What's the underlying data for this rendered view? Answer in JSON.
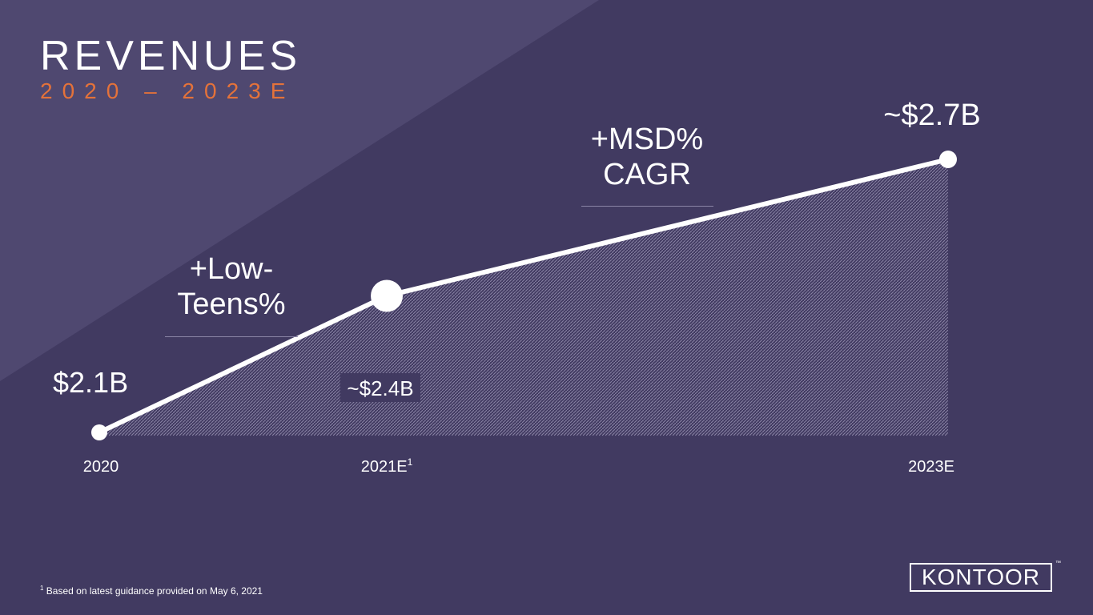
{
  "header": {
    "title": "REVENUES",
    "subtitle": "2020 – 2023E"
  },
  "colors": {
    "background": "#413a61",
    "diagonal_band": "#4f4870",
    "accent": "#e4723a",
    "line": "#ffffff",
    "fill_hatch": "#8a84a6"
  },
  "chart_data": {
    "type": "area",
    "title": "",
    "xlabel": "",
    "ylabel": "",
    "x": [
      "2020",
      "2021E",
      "2023E"
    ],
    "x_superscripts": [
      "",
      "1",
      ""
    ],
    "values_billions_usd": [
      2.1,
      2.4,
      2.7
    ],
    "data_labels": [
      "$2.1B",
      "~$2.4B",
      "~$2.7B"
    ],
    "grid": false,
    "legend": "none",
    "annotations": [
      {
        "text_lines": [
          "+Low-",
          "Teens%"
        ],
        "between": [
          "2020",
          "2021E"
        ]
      },
      {
        "text_lines": [
          "+MSD%",
          "CAGR"
        ],
        "between": [
          "2021E",
          "2023E"
        ]
      }
    ]
  },
  "footnote": {
    "marker": "1",
    "text": "Based on latest guidance provided on May 6, 2021"
  },
  "logo": {
    "text": "KONTOOR",
    "trademark": "™"
  }
}
